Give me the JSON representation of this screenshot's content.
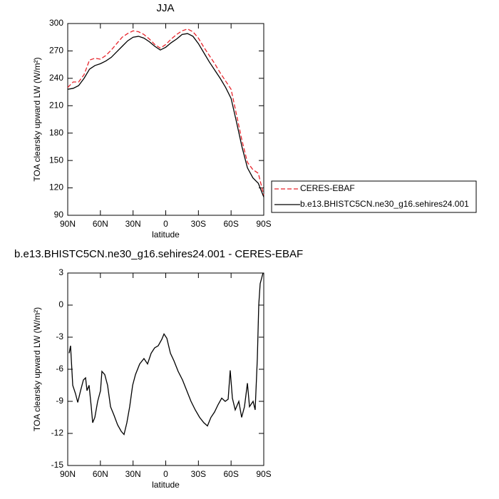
{
  "chart_data": [
    {
      "type": "line",
      "title": "JJA",
      "x_label": "latitude",
      "y_label": "TOA clearsky upward LW (W/m²)",
      "xlim": [
        90,
        -90
      ],
      "xticks": [
        {
          "value": 90,
          "label": "90N"
        },
        {
          "value": 60,
          "label": "60N"
        },
        {
          "value": 30,
          "label": "30N"
        },
        0,
        {
          "value": -30,
          "label": "30S"
        },
        {
          "value": -60,
          "label": "60S"
        },
        {
          "value": -90,
          "label": "90S"
        }
      ],
      "ylim": [
        90,
        300
      ],
      "yticks": [
        90,
        120,
        150,
        180,
        210,
        240,
        270,
        300
      ],
      "legend": "outside-right",
      "x": [
        90,
        85,
        80,
        75,
        70,
        65,
        60,
        55,
        50,
        45,
        40,
        35,
        30,
        25,
        20,
        15,
        10,
        5,
        0,
        -5,
        -10,
        -15,
        -20,
        -25,
        -30,
        -35,
        -40,
        -45,
        -50,
        -55,
        -60,
        -65,
        -70,
        -75,
        -80,
        -85,
        -90
      ],
      "series": [
        {
          "name": "CERES-EBAF",
          "color": "#e8232a",
          "dashed": true,
          "values": [
            230,
            236,
            236,
            244,
            260,
            262,
            261,
            265,
            271,
            278,
            285,
            289,
            292,
            291,
            288,
            283,
            277,
            273,
            277,
            283,
            288,
            292,
            294,
            291,
            284,
            274,
            265,
            256,
            246,
            237,
            228,
            200,
            172,
            148,
            140,
            136,
            112
          ]
        },
        {
          "name": "b.e13.BHISTC5CN.ne30_g16.sehires24.001",
          "color": "#000000",
          "dashed": false,
          "values": [
            228,
            229,
            232,
            240,
            250,
            254,
            256,
            259,
            263,
            269,
            275,
            281,
            285,
            286,
            284,
            280,
            275,
            271,
            274,
            279,
            283,
            288,
            289,
            286,
            278,
            268,
            258,
            249,
            240,
            230,
            218,
            192,
            165,
            142,
            131,
            125,
            110
          ]
        }
      ]
    },
    {
      "type": "line",
      "title": "b.e13.BHISTC5CN.ne30_g16.sehires24.001 - CERES-EBAF",
      "x_label": "latitude",
      "y_label": "TOA clearsky upward LW (W/m²)",
      "xlim": [
        90,
        -90
      ],
      "xticks": [
        {
          "value": 90,
          "label": "90N"
        },
        {
          "value": 60,
          "label": "60N"
        },
        {
          "value": 30,
          "label": "30N"
        },
        0,
        {
          "value": -30,
          "label": "30S"
        },
        {
          "value": -60,
          "label": "60S"
        },
        {
          "value": -90,
          "label": "90S"
        }
      ],
      "ylim": [
        -15,
        3
      ],
      "yticks": [
        -15,
        -12,
        -9,
        -6,
        -3,
        0,
        3
      ],
      "x": [
        88.7,
        87.4,
        85.4,
        82.8,
        80.8,
        78.2,
        75.6,
        73.6,
        72.3,
        70.4,
        68.4,
        67.1,
        65.1,
        62.5,
        59.9,
        58.6,
        56,
        53.4,
        50.7,
        47.5,
        44.2,
        40.9,
        38.3,
        35.7,
        33.1,
        30.4,
        27.8,
        23.9,
        20,
        16.7,
        13.4,
        10.2,
        6.9,
        3.6,
        1.6,
        -1,
        -4.3,
        -7.5,
        -11.4,
        -15.4,
        -19.3,
        -23.2,
        -27.1,
        -31.1,
        -35,
        -38.3,
        -41.5,
        -44.8,
        -48.1,
        -51.4,
        -54.6,
        -57.3,
        -59.2,
        -61.2,
        -63.8,
        -67.1,
        -69.7,
        -72.3,
        -75,
        -76.9,
        -80.2,
        -82.1,
        -84.1,
        -85.4,
        -86.7,
        -88,
        -89.3
      ],
      "series": [
        {
          "color": "#000000",
          "dashed": false,
          "values": [
            -4.5,
            -3.8,
            -7.5,
            -8.3,
            -9.1,
            -8.0,
            -7.0,
            -6.8,
            -8.0,
            -7.5,
            -9.5,
            -11.0,
            -10.5,
            -9.0,
            -8.0,
            -6.2,
            -6.5,
            -7.5,
            -9.5,
            -10.3,
            -11.2,
            -11.8,
            -12.1,
            -11.0,
            -9.5,
            -7.5,
            -6.5,
            -5.5,
            -5.0,
            -5.5,
            -4.5,
            -4.0,
            -3.8,
            -3.2,
            -2.7,
            -3.1,
            -4.5,
            -5.2,
            -6.2,
            -7.0,
            -8.0,
            -9.0,
            -9.8,
            -10.5,
            -11.0,
            -11.3,
            -10.5,
            -10.0,
            -9.3,
            -8.7,
            -9.0,
            -8.8,
            -6.1,
            -8.7,
            -9.8,
            -9.0,
            -10.5,
            -9.5,
            -7.3,
            -9.5,
            -9.0,
            -9.8,
            -5.0,
            0,
            2.0,
            2.5,
            3.0
          ]
        }
      ]
    }
  ]
}
